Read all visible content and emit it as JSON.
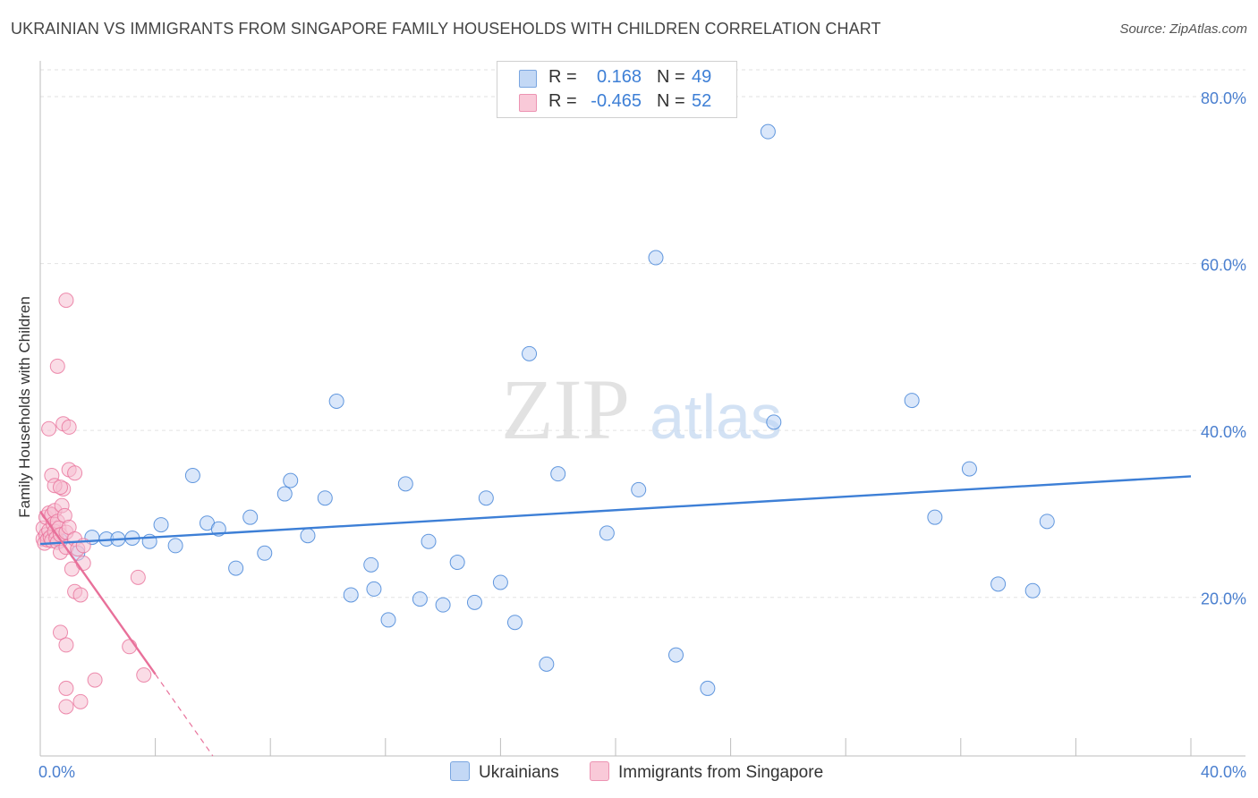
{
  "title": "UKRAINIAN VS IMMIGRANTS FROM SINGAPORE FAMILY HOUSEHOLDS WITH CHILDREN CORRELATION CHART",
  "source": "Source: ZipAtlas.com",
  "watermark": {
    "zip": "ZIP",
    "atlas": "atlas"
  },
  "colors": {
    "blue": "#3d7fd6",
    "blue_fill": "#bcd4f5",
    "pink": "#e8709a",
    "pink_fill": "#f6bfd1",
    "tick_label": "#4a7fcf"
  },
  "legend": {
    "rows": [
      {
        "r_label": "R = ",
        "r_value": "0.168",
        "n_label": "N = ",
        "n_value": "49"
      },
      {
        "r_label": "R = ",
        "r_value": "-0.465",
        "n_label": "N = ",
        "n_value": "52"
      }
    ]
  },
  "bottom_legend": {
    "series1": "Ukrainians",
    "series2": "Immigrants from Singapore"
  },
  "chart_data": {
    "type": "scatter",
    "title": "UKRAINIAN VS IMMIGRANTS FROM SINGAPORE FAMILY HOUSEHOLDS WITH CHILDREN CORRELATION CHART",
    "xlabel": "",
    "ylabel": "Family Households with Children",
    "xlim": [
      0,
      40
    ],
    "ylim": [
      1,
      83
    ],
    "x_tick_labels": [
      "0.0%",
      "40.0%"
    ],
    "y_ticks": [
      20,
      40,
      60,
      80
    ],
    "y_tick_labels": [
      "20.0%",
      "40.0%",
      "60.0%",
      "80.0%"
    ],
    "series": [
      {
        "name": "Ukrainians",
        "points": [
          [
            0.7,
            26.8
          ],
          [
            1.3,
            25.3
          ],
          [
            1.8,
            27.2
          ],
          [
            2.3,
            27.0
          ],
          [
            2.7,
            27.0
          ],
          [
            3.2,
            27.1
          ],
          [
            3.8,
            26.7
          ],
          [
            4.2,
            28.7
          ],
          [
            4.7,
            26.2
          ],
          [
            5.3,
            34.6
          ],
          [
            5.8,
            28.9
          ],
          [
            6.2,
            28.2
          ],
          [
            6.8,
            23.5
          ],
          [
            7.3,
            29.6
          ],
          [
            7.8,
            25.3
          ],
          [
            8.5,
            32.4
          ],
          [
            8.7,
            34.0
          ],
          [
            9.3,
            27.4
          ],
          [
            9.9,
            31.9
          ],
          [
            10.3,
            43.5
          ],
          [
            10.8,
            20.3
          ],
          [
            11.5,
            23.9
          ],
          [
            11.6,
            21.0
          ],
          [
            12.1,
            17.3
          ],
          [
            12.7,
            33.6
          ],
          [
            13.2,
            19.8
          ],
          [
            13.5,
            26.7
          ],
          [
            14.0,
            19.1
          ],
          [
            14.5,
            24.2
          ],
          [
            15.1,
            19.4
          ],
          [
            15.5,
            31.9
          ],
          [
            16.0,
            21.8
          ],
          [
            16.5,
            17.0
          ],
          [
            17.0,
            49.2
          ],
          [
            17.6,
            12.0
          ],
          [
            18.0,
            34.8
          ],
          [
            19.7,
            27.7
          ],
          [
            20.8,
            32.9
          ],
          [
            21.4,
            60.7
          ],
          [
            22.1,
            13.1
          ],
          [
            23.2,
            9.1
          ],
          [
            25.3,
            75.8
          ],
          [
            25.5,
            41.0
          ],
          [
            30.3,
            43.6
          ],
          [
            31.1,
            29.6
          ],
          [
            32.3,
            35.4
          ],
          [
            33.3,
            21.6
          ],
          [
            34.5,
            20.8
          ],
          [
            35.0,
            29.1
          ]
        ]
      },
      {
        "name": "Immigrants from Singapore",
        "points": [
          [
            0.1,
            27.0
          ],
          [
            0.1,
            28.3
          ],
          [
            0.15,
            26.5
          ],
          [
            0.2,
            29.6
          ],
          [
            0.2,
            27.5
          ],
          [
            0.25,
            26.9
          ],
          [
            0.3,
            30.1
          ],
          [
            0.3,
            28.0
          ],
          [
            0.35,
            27.2
          ],
          [
            0.4,
            29.9
          ],
          [
            0.4,
            26.8
          ],
          [
            0.45,
            28.8
          ],
          [
            0.5,
            27.9
          ],
          [
            0.5,
            30.4
          ],
          [
            0.55,
            27.1
          ],
          [
            0.6,
            26.6
          ],
          [
            0.6,
            29.1
          ],
          [
            0.65,
            28.3
          ],
          [
            0.7,
            27.5
          ],
          [
            0.7,
            25.4
          ],
          [
            0.75,
            31.0
          ],
          [
            0.8,
            33.0
          ],
          [
            0.85,
            29.8
          ],
          [
            0.9,
            27.8
          ],
          [
            0.4,
            34.6
          ],
          [
            0.5,
            33.4
          ],
          [
            0.7,
            33.2
          ],
          [
            0.9,
            26.0
          ],
          [
            1.0,
            28.4
          ],
          [
            1.1,
            23.4
          ],
          [
            0.3,
            40.2
          ],
          [
            0.8,
            40.8
          ],
          [
            1.0,
            40.4
          ],
          [
            1.0,
            35.3
          ],
          [
            1.2,
            34.9
          ],
          [
            0.6,
            47.7
          ],
          [
            0.9,
            55.6
          ],
          [
            1.2,
            27.0
          ],
          [
            1.3,
            25.8
          ],
          [
            1.5,
            24.1
          ],
          [
            1.5,
            26.2
          ],
          [
            1.2,
            20.7
          ],
          [
            1.4,
            20.3
          ],
          [
            0.7,
            15.8
          ],
          [
            0.9,
            14.3
          ],
          [
            0.9,
            9.1
          ],
          [
            0.9,
            6.9
          ],
          [
            1.4,
            7.5
          ],
          [
            1.9,
            10.1
          ],
          [
            3.1,
            14.1
          ],
          [
            3.4,
            22.4
          ],
          [
            3.6,
            10.7
          ]
        ]
      }
    ],
    "trendlines": [
      {
        "series": "Ukrainians",
        "x": [
          0,
          40
        ],
        "y": [
          26.4,
          34.5
        ],
        "style": "solid"
      },
      {
        "series": "Immigrants from Singapore",
        "x": [
          0,
          4.0
        ],
        "y": [
          30.3,
          10.8
        ],
        "style": "solid"
      },
      {
        "series": "Immigrants from Singapore",
        "x": [
          4.0,
          6.0
        ],
        "y": [
          10.8,
          1.0
        ],
        "style": "dashed"
      }
    ]
  }
}
